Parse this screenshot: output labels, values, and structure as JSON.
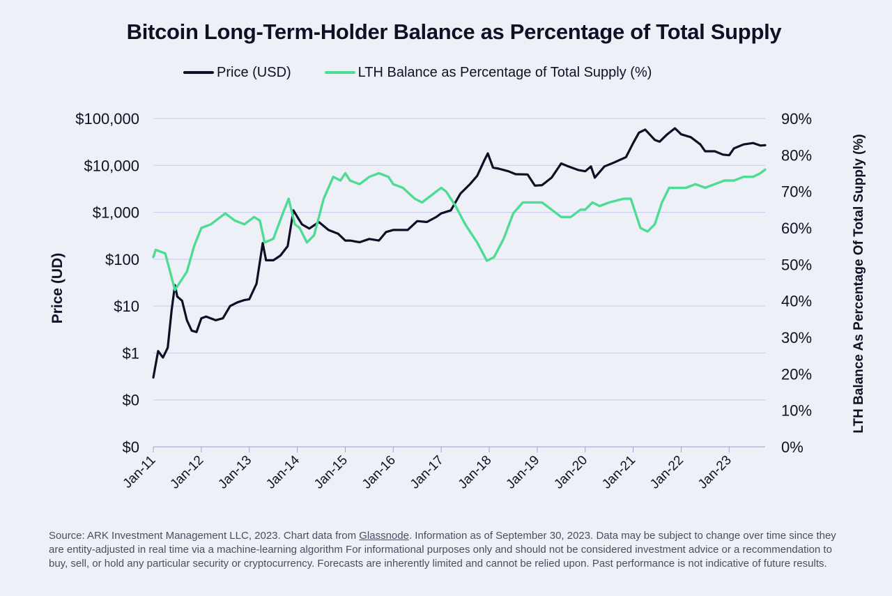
{
  "colors": {
    "price": "#0e0f24",
    "lth": "#4edc94",
    "grid": "#c5c9ea",
    "axis": "#9aa0cc",
    "text": "#0f1023"
  },
  "source_note": {
    "prefix": "Source: ARK Investment Management LLC, 2023. Chart data from ",
    "link": "Glassnode",
    "suffix": ". Information as of September 30, 2023. Data may be subject to change over time since they are entity-adjusted in real time via a machine-learning algorithm For informational purposes only and should not be considered investment advice or a recommendation to buy, sell, or hold any particular security or cryptocurrency. Forecasts are inherently limited and cannot be relied upon. Past performance is not indicative of future results."
  },
  "chart_data": {
    "type": "line",
    "title": "Bitcoin Long-Term-Holder Balance as Percentage of Total Supply",
    "legend": [
      "Price (USD)",
      "LTH Balance as Percentage of Total Supply (%)"
    ],
    "legend_position": "top-center",
    "xlabel": "",
    "ylabel_left": "Price (UD)",
    "ylabel_right": "LTH Balance As Percentage Of Total Supply (%)",
    "x_range": [
      2011.0,
      2023.75
    ],
    "x_ticks": [
      {
        "value": 2011,
        "label": "Jan-11"
      },
      {
        "value": 2012,
        "label": "Jan-12"
      },
      {
        "value": 2013,
        "label": "Jan-13"
      },
      {
        "value": 2014,
        "label": "Jan-14"
      },
      {
        "value": 2015,
        "label": "Jan-15"
      },
      {
        "value": 2016,
        "label": "Jan-16"
      },
      {
        "value": 2017,
        "label": "Jan-17"
      },
      {
        "value": 2018,
        "label": "Jan-18"
      },
      {
        "value": 2019,
        "label": "Jan-19"
      },
      {
        "value": 2020,
        "label": "Jan-20"
      },
      {
        "value": 2021,
        "label": "Jan-21"
      },
      {
        "value": 2022,
        "label": "Jan-22"
      },
      {
        "value": 2023,
        "label": "Jan-23"
      }
    ],
    "y_left_scale": "log10",
    "y_left_range_log10": [
      -2,
      5
    ],
    "y_left_ticks": [
      {
        "log10": 5,
        "label": "$100,000"
      },
      {
        "log10": 4,
        "label": "$10,000"
      },
      {
        "log10": 3,
        "label": "$1,000"
      },
      {
        "log10": 2,
        "label": "$100"
      },
      {
        "log10": 1,
        "label": "$10"
      },
      {
        "log10": 0,
        "label": "$1"
      },
      {
        "log10": -1,
        "label": "$0"
      },
      {
        "log10": -2,
        "label": "$0"
      }
    ],
    "y_right_range": [
      0,
      90
    ],
    "y_right_ticks": [
      {
        "value": 90,
        "label": "90%"
      },
      {
        "value": 80,
        "label": "80%"
      },
      {
        "value": 70,
        "label": "70%"
      },
      {
        "value": 60,
        "label": "60%"
      },
      {
        "value": 50,
        "label": "50%"
      },
      {
        "value": 40,
        "label": "40%"
      },
      {
        "value": 30,
        "label": "30%"
      },
      {
        "value": 20,
        "label": "20%"
      },
      {
        "value": 10,
        "label": "10%"
      },
      {
        "value": 0,
        "label": "0%"
      }
    ],
    "grid": true,
    "series": [
      {
        "name": "Price (USD)",
        "axis": "left",
        "points": [
          [
            2011.0,
            0.3
          ],
          [
            2011.1,
            1.1
          ],
          [
            2011.2,
            0.8
          ],
          [
            2011.3,
            1.3
          ],
          [
            2011.38,
            8
          ],
          [
            2011.45,
            28
          ],
          [
            2011.5,
            16
          ],
          [
            2011.6,
            13
          ],
          [
            2011.7,
            5
          ],
          [
            2011.8,
            3
          ],
          [
            2011.9,
            2.8
          ],
          [
            2012.0,
            5.5
          ],
          [
            2012.1,
            6
          ],
          [
            2012.3,
            5
          ],
          [
            2012.45,
            5.5
          ],
          [
            2012.6,
            10
          ],
          [
            2012.75,
            12
          ],
          [
            2012.9,
            13.5
          ],
          [
            2013.0,
            14
          ],
          [
            2013.15,
            30
          ],
          [
            2013.28,
            220
          ],
          [
            2013.35,
            95
          ],
          [
            2013.5,
            95
          ],
          [
            2013.65,
            120
          ],
          [
            2013.8,
            190
          ],
          [
            2013.92,
            1100
          ],
          [
            2014.0,
            800
          ],
          [
            2014.1,
            550
          ],
          [
            2014.25,
            450
          ],
          [
            2014.45,
            620
          ],
          [
            2014.65,
            420
          ],
          [
            2014.85,
            350
          ],
          [
            2015.0,
            250
          ],
          [
            2015.1,
            250
          ],
          [
            2015.3,
            230
          ],
          [
            2015.5,
            270
          ],
          [
            2015.7,
            250
          ],
          [
            2015.85,
            380
          ],
          [
            2016.0,
            420
          ],
          [
            2016.3,
            420
          ],
          [
            2016.5,
            650
          ],
          [
            2016.7,
            620
          ],
          [
            2016.9,
            800
          ],
          [
            2017.0,
            950
          ],
          [
            2017.2,
            1100
          ],
          [
            2017.4,
            2500
          ],
          [
            2017.6,
            4000
          ],
          [
            2017.75,
            6000
          ],
          [
            2017.9,
            13000
          ],
          [
            2017.97,
            18000
          ],
          [
            2018.08,
            9000
          ],
          [
            2018.2,
            8500
          ],
          [
            2018.4,
            7500
          ],
          [
            2018.55,
            6500
          ],
          [
            2018.8,
            6400
          ],
          [
            2018.95,
            3700
          ],
          [
            2019.1,
            3800
          ],
          [
            2019.3,
            5500
          ],
          [
            2019.5,
            11000
          ],
          [
            2019.65,
            9500
          ],
          [
            2019.85,
            8000
          ],
          [
            2020.0,
            7500
          ],
          [
            2020.12,
            9500
          ],
          [
            2020.2,
            5500
          ],
          [
            2020.4,
            9500
          ],
          [
            2020.6,
            11500
          ],
          [
            2020.85,
            15000
          ],
          [
            2021.0,
            30000
          ],
          [
            2021.12,
            50000
          ],
          [
            2021.25,
            58000
          ],
          [
            2021.45,
            35000
          ],
          [
            2021.55,
            32000
          ],
          [
            2021.7,
            45000
          ],
          [
            2021.87,
            62000
          ],
          [
            2022.0,
            46000
          ],
          [
            2022.2,
            40000
          ],
          [
            2022.4,
            28000
          ],
          [
            2022.5,
            20000
          ],
          [
            2022.7,
            20000
          ],
          [
            2022.87,
            17000
          ],
          [
            2023.0,
            16500
          ],
          [
            2023.1,
            23000
          ],
          [
            2023.3,
            28000
          ],
          [
            2023.5,
            30000
          ],
          [
            2023.65,
            26500
          ],
          [
            2023.75,
            27000
          ]
        ]
      },
      {
        "name": "LTH Balance as Percentage of Total Supply (%)",
        "axis": "right",
        "points": [
          [
            2011.0,
            52
          ],
          [
            2011.05,
            54
          ],
          [
            2011.25,
            53
          ],
          [
            2011.35,
            48
          ],
          [
            2011.45,
            43
          ],
          [
            2011.55,
            45
          ],
          [
            2011.7,
            48
          ],
          [
            2011.85,
            55
          ],
          [
            2012.0,
            60
          ],
          [
            2012.2,
            61
          ],
          [
            2012.5,
            64
          ],
          [
            2012.7,
            62
          ],
          [
            2012.9,
            61
          ],
          [
            2013.1,
            63
          ],
          [
            2013.22,
            62
          ],
          [
            2013.32,
            56
          ],
          [
            2013.5,
            57
          ],
          [
            2013.7,
            64
          ],
          [
            2013.82,
            68
          ],
          [
            2013.95,
            61
          ],
          [
            2014.05,
            60
          ],
          [
            2014.2,
            56
          ],
          [
            2014.35,
            58
          ],
          [
            2014.55,
            68
          ],
          [
            2014.75,
            74
          ],
          [
            2014.9,
            73
          ],
          [
            2015.0,
            75
          ],
          [
            2015.1,
            73
          ],
          [
            2015.3,
            72
          ],
          [
            2015.5,
            74
          ],
          [
            2015.7,
            75
          ],
          [
            2015.9,
            74
          ],
          [
            2016.0,
            72
          ],
          [
            2016.2,
            71
          ],
          [
            2016.45,
            68
          ],
          [
            2016.6,
            67
          ],
          [
            2016.8,
            69
          ],
          [
            2017.0,
            71
          ],
          [
            2017.1,
            70
          ],
          [
            2017.3,
            66
          ],
          [
            2017.5,
            61
          ],
          [
            2017.75,
            56
          ],
          [
            2017.95,
            51
          ],
          [
            2018.1,
            52
          ],
          [
            2018.3,
            57
          ],
          [
            2018.5,
            64
          ],
          [
            2018.7,
            67
          ],
          [
            2018.9,
            67
          ],
          [
            2019.1,
            67
          ],
          [
            2019.3,
            65
          ],
          [
            2019.5,
            63
          ],
          [
            2019.7,
            63
          ],
          [
            2019.9,
            65
          ],
          [
            2020.0,
            65
          ],
          [
            2020.15,
            67
          ],
          [
            2020.3,
            66
          ],
          [
            2020.5,
            67
          ],
          [
            2020.8,
            68
          ],
          [
            2020.95,
            68
          ],
          [
            2021.05,
            64
          ],
          [
            2021.15,
            60
          ],
          [
            2021.3,
            59
          ],
          [
            2021.45,
            61
          ],
          [
            2021.6,
            67
          ],
          [
            2021.75,
            71
          ],
          [
            2021.9,
            71
          ],
          [
            2022.1,
            71
          ],
          [
            2022.3,
            72
          ],
          [
            2022.5,
            71
          ],
          [
            2022.7,
            72
          ],
          [
            2022.9,
            73
          ],
          [
            2023.1,
            73
          ],
          [
            2023.3,
            74
          ],
          [
            2023.5,
            74
          ],
          [
            2023.65,
            75
          ],
          [
            2023.75,
            76
          ]
        ]
      }
    ]
  }
}
